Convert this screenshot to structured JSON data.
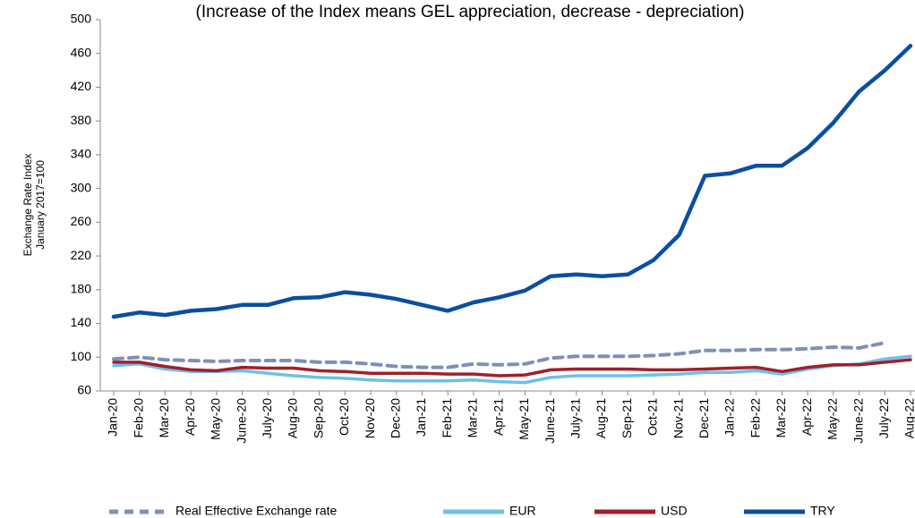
{
  "chart_data": {
    "type": "line",
    "title": "(Increase of the Index means GEL appreciation, decrease - depreciation)",
    "y_label": [
      "Exchange Rate Index",
      "January 2017=100"
    ],
    "categories": [
      "Jan-20",
      "Feb-20",
      "Mar-20",
      "Apr-20",
      "May-20",
      "June-20",
      "July-20",
      "Aug-20",
      "Sep-20",
      "Oct-20",
      "Nov-20",
      "Dec-20",
      "Jan-21",
      "Feb-21",
      "Mar-21",
      "Apr-21",
      "May-21",
      "June-21",
      "July-21",
      "Aug-21",
      "Sep-21",
      "Oct-21",
      "Nov-21",
      "Dec-21",
      "Jan-22",
      "Feb-22",
      "Mar-22",
      "Apr-22",
      "May-22",
      "June-22",
      "July-22",
      "Aug-22"
    ],
    "series": [
      {
        "name": "Real Effective Exchange rate",
        "color": "#7f8fb8",
        "style": "dashed",
        "values": [
          98,
          100,
          97,
          96,
          95,
          96,
          96,
          96,
          94,
          94,
          92,
          89,
          88,
          88,
          92,
          91,
          92,
          99,
          101,
          101,
          101,
          102,
          104,
          108,
          108,
          109,
          109,
          110,
          112,
          111,
          117,
          null
        ]
      },
      {
        "name": "EUR",
        "color": "#6ec0ea",
        "style": "solid",
        "values": [
          90,
          92,
          86,
          83,
          83,
          84,
          81,
          78,
          76,
          75,
          73,
          72,
          72,
          72,
          73,
          71,
          70,
          76,
          78,
          78,
          78,
          79,
          80,
          82,
          82,
          84,
          80,
          86,
          90,
          92,
          98,
          101
        ]
      },
      {
        "name": "USD",
        "color": "#a0202a",
        "style": "solid",
        "values": [
          94,
          94,
          89,
          85,
          84,
          88,
          87,
          87,
          84,
          83,
          81,
          81,
          81,
          80,
          80,
          78,
          79,
          85,
          86,
          86,
          86,
          85,
          85,
          86,
          87,
          88,
          83,
          88,
          91,
          91,
          94,
          97
        ]
      },
      {
        "name": "TRY",
        "color": "#0a4fa0",
        "style": "solid",
        "values": [
          148,
          153,
          150,
          155,
          157,
          162,
          162,
          170,
          171,
          177,
          174,
          169,
          162,
          155,
          165,
          171,
          179,
          196,
          198,
          196,
          198,
          215,
          245,
          315,
          318,
          327,
          327,
          348,
          378,
          415,
          440,
          469
        ]
      }
    ],
    "ylim": [
      60,
      500
    ],
    "yticks": [
      60,
      100,
      140,
      180,
      220,
      260,
      300,
      340,
      380,
      420,
      460,
      500
    ],
    "grid": false,
    "legend": "bottom"
  }
}
